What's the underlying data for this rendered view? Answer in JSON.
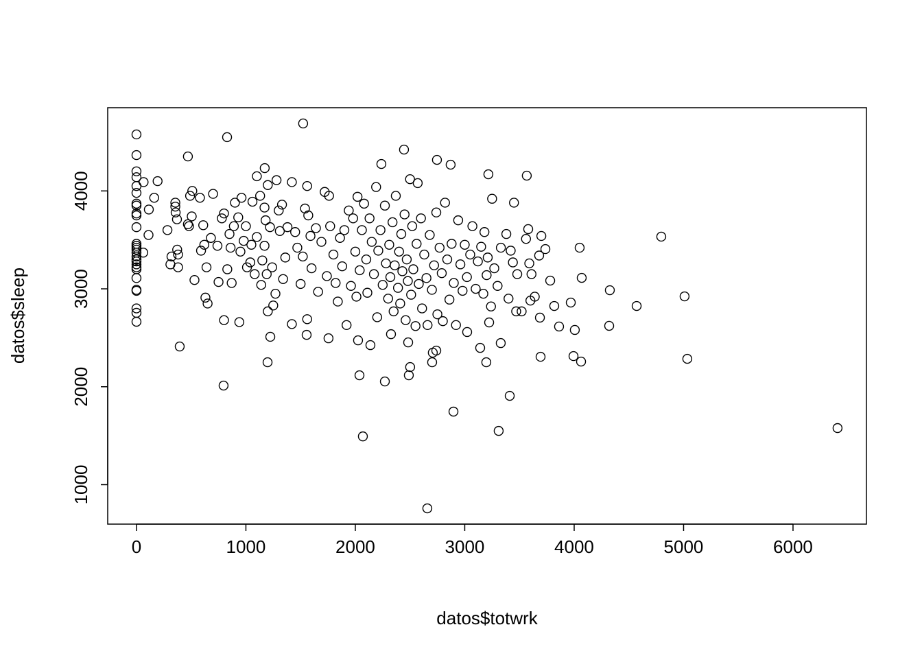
{
  "chart_data": {
    "type": "scatter",
    "title": "",
    "xlabel": "datos$totwrk",
    "ylabel": "datos$sleep",
    "xlim": [
      -263,
      6671
    ],
    "ylim": [
      597,
      4850
    ],
    "xticks": [
      0,
      1000,
      2000,
      3000,
      4000,
      5000,
      6000
    ],
    "yticks": [
      1000,
      2000,
      3000,
      4000
    ],
    "xtick_labels": [
      "0",
      "1000",
      "2000",
      "3000",
      "4000",
      "5000",
      "6000"
    ],
    "ytick_labels": [
      "1000",
      "2000",
      "3000",
      "4000"
    ],
    "grid": false,
    "marker": "open-circle",
    "color": "#000000",
    "points": [
      [
        0,
        4577
      ],
      [
        0,
        4366
      ],
      [
        0,
        4200
      ],
      [
        0,
        4140
      ],
      [
        0,
        4050
      ],
      [
        0,
        3980
      ],
      [
        0,
        3870
      ],
      [
        0,
        3850
      ],
      [
        0,
        3770
      ],
      [
        0,
        3750
      ],
      [
        0,
        3630
      ],
      [
        0,
        3460
      ],
      [
        0,
        3440
      ],
      [
        0,
        3420
      ],
      [
        0,
        3400
      ],
      [
        0,
        3370
      ],
      [
        0,
        3330
      ],
      [
        0,
        3300
      ],
      [
        0,
        3280
      ],
      [
        0,
        3250
      ],
      [
        0,
        3220
      ],
      [
        0,
        3200
      ],
      [
        0,
        3110
      ],
      [
        0,
        2990
      ],
      [
        0,
        2980
      ],
      [
        0,
        2800
      ],
      [
        0,
        2755
      ],
      [
        0,
        2664
      ],
      [
        65,
        4090
      ],
      [
        193,
        4100
      ],
      [
        162,
        3930
      ],
      [
        113,
        3810
      ],
      [
        110,
        3550
      ],
      [
        62,
        3370
      ],
      [
        283,
        3600
      ],
      [
        310,
        3250
      ],
      [
        320,
        3330
      ],
      [
        355,
        3880
      ],
      [
        355,
        3840
      ],
      [
        358,
        3780
      ],
      [
        370,
        3710
      ],
      [
        372,
        3400
      ],
      [
        380,
        3220
      ],
      [
        380,
        3350
      ],
      [
        395,
        2411
      ],
      [
        470,
        4352
      ],
      [
        470,
        3660
      ],
      [
        480,
        3640
      ],
      [
        490,
        3950
      ],
      [
        510,
        4000
      ],
      [
        505,
        3740
      ],
      [
        530,
        3090
      ],
      [
        580,
        3930
      ],
      [
        590,
        3390
      ],
      [
        610,
        3650
      ],
      [
        620,
        3450
      ],
      [
        630,
        2910
      ],
      [
        640,
        3220
      ],
      [
        650,
        2850
      ],
      [
        680,
        3520
      ],
      [
        700,
        3970
      ],
      [
        740,
        3440
      ],
      [
        750,
        3070
      ],
      [
        780,
        3720
      ],
      [
        796,
        2012
      ],
      [
        800,
        2680
      ],
      [
        800,
        3770
      ],
      [
        828,
        4549
      ],
      [
        830,
        3200
      ],
      [
        850,
        3560
      ],
      [
        860,
        3420
      ],
      [
        870,
        3060
      ],
      [
        890,
        3640
      ],
      [
        900,
        3880
      ],
      [
        930,
        3730
      ],
      [
        940,
        2660
      ],
      [
        950,
        3380
      ],
      [
        960,
        3930
      ],
      [
        980,
        3490
      ],
      [
        1000,
        3640
      ],
      [
        1010,
        3220
      ],
      [
        1040,
        3270
      ],
      [
        1050,
        3450
      ],
      [
        1060,
        3890
      ],
      [
        1080,
        3150
      ],
      [
        1100,
        4150
      ],
      [
        1100,
        3530
      ],
      [
        1130,
        3950
      ],
      [
        1140,
        3040
      ],
      [
        1150,
        3290
      ],
      [
        1170,
        3440
      ],
      [
        1170,
        3830
      ],
      [
        1172,
        4233
      ],
      [
        1180,
        3700
      ],
      [
        1190,
        3150
      ],
      [
        1198,
        2250
      ],
      [
        1200,
        4060
      ],
      [
        1200,
        2770
      ],
      [
        1220,
        3630
      ],
      [
        1223,
        2510
      ],
      [
        1240,
        3220
      ],
      [
        1250,
        2830
      ],
      [
        1270,
        2950
      ],
      [
        1280,
        4110
      ],
      [
        1300,
        3800
      ],
      [
        1310,
        3590
      ],
      [
        1330,
        3860
      ],
      [
        1340,
        3100
      ],
      [
        1360,
        3320
      ],
      [
        1380,
        3630
      ],
      [
        1420,
        4090
      ],
      [
        1420,
        2640
      ],
      [
        1450,
        3580
      ],
      [
        1470,
        3420
      ],
      [
        1500,
        3050
      ],
      [
        1520,
        3330
      ],
      [
        1523,
        4689
      ],
      [
        1540,
        3820
      ],
      [
        1555,
        2530
      ],
      [
        1560,
        4050
      ],
      [
        1560,
        2690
      ],
      [
        1570,
        3750
      ],
      [
        1590,
        3540
      ],
      [
        1600,
        3210
      ],
      [
        1640,
        3620
      ],
      [
        1660,
        2970
      ],
      [
        1690,
        3480
      ],
      [
        1720,
        3990
      ],
      [
        1740,
        3130
      ],
      [
        1755,
        2495
      ],
      [
        1760,
        3950
      ],
      [
        1770,
        3640
      ],
      [
        1800,
        3350
      ],
      [
        1820,
        3060
      ],
      [
        1840,
        2870
      ],
      [
        1860,
        3520
      ],
      [
        1880,
        3230
      ],
      [
        1900,
        3600
      ],
      [
        1920,
        2630
      ],
      [
        1940,
        3800
      ],
      [
        1960,
        3030
      ],
      [
        1980,
        3720
      ],
      [
        2000,
        3380
      ],
      [
        2010,
        2920
      ],
      [
        2020,
        3940
      ],
      [
        2025,
        2474
      ],
      [
        2038,
        2117
      ],
      [
        2040,
        3190
      ],
      [
        2060,
        3600
      ],
      [
        2069,
        1493
      ],
      [
        2080,
        3870
      ],
      [
        2100,
        3300
      ],
      [
        2110,
        2960
      ],
      [
        2130,
        3720
      ],
      [
        2138,
        2425
      ],
      [
        2150,
        3480
      ],
      [
        2170,
        3150
      ],
      [
        2190,
        4040
      ],
      [
        2200,
        2710
      ],
      [
        2210,
        3390
      ],
      [
        2230,
        3600
      ],
      [
        2238,
        4275
      ],
      [
        2250,
        3040
      ],
      [
        2270,
        2054
      ],
      [
        2270,
        3850
      ],
      [
        2280,
        3260
      ],
      [
        2300,
        2900
      ],
      [
        2310,
        3450
      ],
      [
        2320,
        3120
      ],
      [
        2326,
        2537
      ],
      [
        2340,
        3680
      ],
      [
        2350,
        2770
      ],
      [
        2360,
        3240
      ],
      [
        2370,
        3950
      ],
      [
        2390,
        3010
      ],
      [
        2400,
        3380
      ],
      [
        2410,
        2850
      ],
      [
        2420,
        3560
      ],
      [
        2430,
        3180
      ],
      [
        2445,
        4422
      ],
      [
        2450,
        3760
      ],
      [
        2460,
        2680
      ],
      [
        2470,
        3300
      ],
      [
        2480,
        3080
      ],
      [
        2483,
        2453
      ],
      [
        2489,
        2117
      ],
      [
        2500,
        4120
      ],
      [
        2501,
        2201
      ],
      [
        2510,
        2940
      ],
      [
        2520,
        3640
      ],
      [
        2530,
        3200
      ],
      [
        2550,
        2620
      ],
      [
        2560,
        3460
      ],
      [
        2570,
        4080
      ],
      [
        2580,
        3050
      ],
      [
        2600,
        3720
      ],
      [
        2610,
        2800
      ],
      [
        2630,
        3350
      ],
      [
        2650,
        3110
      ],
      [
        2658,
        758
      ],
      [
        2660,
        2630
      ],
      [
        2680,
        3550
      ],
      [
        2700,
        2990
      ],
      [
        2702,
        2250
      ],
      [
        2708,
        2348
      ],
      [
        2720,
        3240
      ],
      [
        2740,
        3780
      ],
      [
        2740,
        2369
      ],
      [
        2746,
        4317
      ],
      [
        2750,
        2740
      ],
      [
        2770,
        3420
      ],
      [
        2790,
        3160
      ],
      [
        2800,
        2670
      ],
      [
        2820,
        3880
      ],
      [
        2840,
        3300
      ],
      [
        2860,
        2890
      ],
      [
        2871,
        4268
      ],
      [
        2880,
        3460
      ],
      [
        2897,
        1746
      ],
      [
        2900,
        3060
      ],
      [
        2920,
        2630
      ],
      [
        2940,
        3700
      ],
      [
        2960,
        3250
      ],
      [
        2980,
        2980
      ],
      [
        3000,
        3450
      ],
      [
        3020,
        3120
      ],
      [
        3022,
        2559
      ],
      [
        3050,
        3350
      ],
      [
        3070,
        3640
      ],
      [
        3100,
        3000
      ],
      [
        3120,
        3280
      ],
      [
        3141,
        2397
      ],
      [
        3150,
        3430
      ],
      [
        3170,
        2950
      ],
      [
        3180,
        3580
      ],
      [
        3197,
        2250
      ],
      [
        3200,
        3140
      ],
      [
        3210,
        3320
      ],
      [
        3216,
        4170
      ],
      [
        3223,
        2657
      ],
      [
        3240,
        2820
      ],
      [
        3250,
        3920
      ],
      [
        3270,
        3210
      ],
      [
        3300,
        3030
      ],
      [
        3310,
        1549
      ],
      [
        3329,
        2446
      ],
      [
        3330,
        3420
      ],
      [
        3380,
        3560
      ],
      [
        3400,
        2900
      ],
      [
        3411,
        1907
      ],
      [
        3420,
        3390
      ],
      [
        3440,
        3270
      ],
      [
        3450,
        3880
      ],
      [
        3470,
        2770
      ],
      [
        3480,
        3150
      ],
      [
        3520,
        2770
      ],
      [
        3560,
        3510
      ],
      [
        3567,
        4156
      ],
      [
        3580,
        3610
      ],
      [
        3590,
        3260
      ],
      [
        3600,
        2880
      ],
      [
        3610,
        3150
      ],
      [
        3640,
        2920
      ],
      [
        3680,
        3340
      ],
      [
        3687,
        2706
      ],
      [
        3693,
        2306
      ],
      [
        3700,
        3540
      ],
      [
        3737,
        3406
      ],
      [
        3781,
        3084
      ],
      [
        3818,
        2825
      ],
      [
        3862,
        2615
      ],
      [
        3969,
        2860
      ],
      [
        3994,
        2313
      ],
      [
        4006,
        2580
      ],
      [
        4050,
        3420
      ],
      [
        4063,
        2257
      ],
      [
        4069,
        3112
      ],
      [
        4320,
        2622
      ],
      [
        4326,
        2986
      ],
      [
        4571,
        2825
      ],
      [
        4796,
        3533
      ],
      [
        5009,
        2923
      ],
      [
        5034,
        2285
      ],
      [
        6407,
        1578
      ]
    ]
  }
}
